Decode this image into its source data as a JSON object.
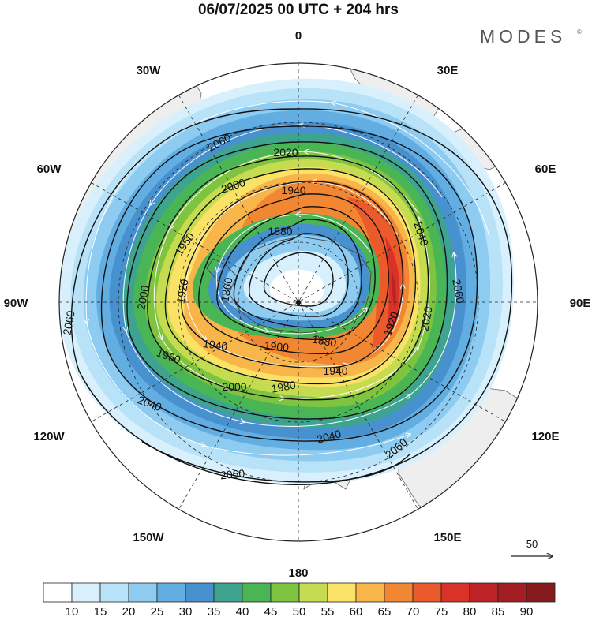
{
  "header": {
    "title": "06/07/2025  00 UTC  + 204 hrs",
    "brand": "MODES",
    "brand_mark": "©"
  },
  "map": {
    "projection": "south-polar-stereographic",
    "longitude_labels": {
      "top": "0",
      "upper_left": "30W",
      "upper_right": "30E",
      "left_upper": "60W",
      "right_upper": "60E",
      "left": "90W",
      "right": "90E",
      "left_lower": "120W",
      "right_lower": "120E",
      "lower_left": "150W",
      "lower_right": "150E",
      "bottom": "180"
    },
    "contour_labels": [
      {
        "text": "2060",
        "rotate": -28
      },
      {
        "text": "2020",
        "rotate": 0
      },
      {
        "text": "2000",
        "rotate": -18
      },
      {
        "text": "1940",
        "rotate": 0
      },
      {
        "text": "1950",
        "rotate": -55
      },
      {
        "text": "1880",
        "rotate": 0
      },
      {
        "text": "1860",
        "rotate": -80
      },
      {
        "text": "1920",
        "rotate": -80
      },
      {
        "text": "2000",
        "rotate": -80
      },
      {
        "text": "2040",
        "rotate": 72
      },
      {
        "text": "2060",
        "rotate": 80
      },
      {
        "text": "2020",
        "rotate": -80
      },
      {
        "text": "1920",
        "rotate": -70
      },
      {
        "text": "1880",
        "rotate": 10
      },
      {
        "text": "1900",
        "rotate": 5
      },
      {
        "text": "1940",
        "rotate": 8
      },
      {
        "text": "1940",
        "rotate": 0
      },
      {
        "text": "1960",
        "rotate": 20
      },
      {
        "text": "1980",
        "rotate": -10
      },
      {
        "text": "2000",
        "rotate": 0
      },
      {
        "text": "2040",
        "rotate": 20
      },
      {
        "text": "2040",
        "rotate": -15
      },
      {
        "text": "2060",
        "rotate": -40
      },
      {
        "text": "2060",
        "rotate": -5
      },
      {
        "text": "2060",
        "rotate": -80
      }
    ],
    "reference_vector_label": "50"
  },
  "colorbar": {
    "labels": [
      "10",
      "15",
      "20",
      "25",
      "30",
      "35",
      "40",
      "45",
      "50",
      "55",
      "60",
      "65",
      "70",
      "75",
      "80",
      "85",
      "90"
    ],
    "colors": [
      "#ffffff",
      "#d8f0fc",
      "#b8e2f8",
      "#8ecbf0",
      "#62aee3",
      "#4891cf",
      "#3ea48f",
      "#49b554",
      "#7ec440",
      "#c6dc50",
      "#fae267",
      "#f8b549",
      "#f18633",
      "#ea5a2b",
      "#d93327",
      "#bd2326",
      "#a21e23",
      "#861b1e"
    ]
  }
}
